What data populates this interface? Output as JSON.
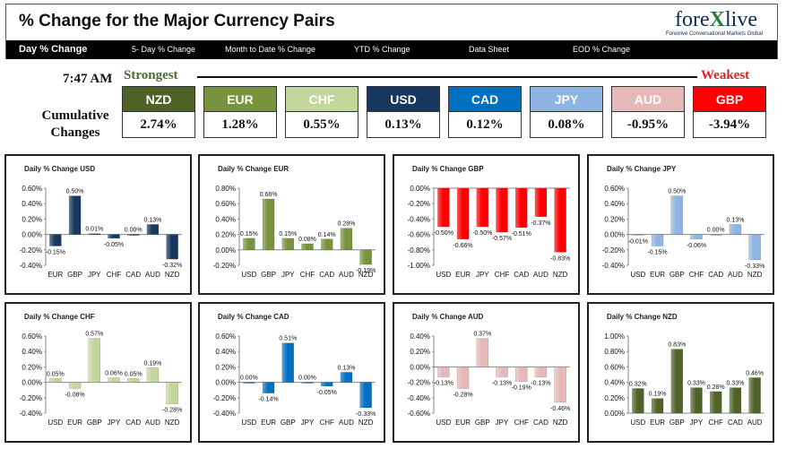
{
  "header": {
    "title": "% Change for the Major Currency Pairs",
    "logo_left": "fore",
    "logo_x": "X",
    "logo_right": "live",
    "tagline": "Forexlive Conversational Markets Global",
    "nav": [
      "Day % Change",
      "5- Day % Change",
      "Month to Date % Change",
      "YTD % Change",
      "Data Sheet",
      "EOD % Change"
    ]
  },
  "summary": {
    "time": "7:47 AM",
    "strongest_label": "Strongest",
    "weakest_label": "Weakest",
    "cumulative_label": "Cumulative Changes",
    "currencies": [
      {
        "code": "NZD",
        "value": "2.74%",
        "color": "#4f6228",
        "text_color": "#ffffff"
      },
      {
        "code": "EUR",
        "value": "1.28%",
        "color": "#77933c",
        "text_color": "#ffffff"
      },
      {
        "code": "CHF",
        "value": "0.55%",
        "color": "#c3d69b",
        "text_color": "#ffffff"
      },
      {
        "code": "USD",
        "value": "0.13%",
        "color": "#17375e",
        "text_color": "#ffffff"
      },
      {
        "code": "CAD",
        "value": "0.12%",
        "color": "#0070c0",
        "text_color": "#ffffff"
      },
      {
        "code": "JPY",
        "value": "0.08%",
        "color": "#8db4e2",
        "text_color": "#ffffff"
      },
      {
        "code": "AUD",
        "value": "-0.95%",
        "color": "#e6b8b7",
        "text_color": "#ffffff"
      },
      {
        "code": "GBP",
        "value": "-3.94%",
        "color": "#ff0000",
        "text_color": "#ffffff"
      }
    ]
  },
  "chart_data": [
    {
      "type": "bar",
      "title": "Daily % Change USD",
      "color": "#17375e",
      "categories": [
        "EUR",
        "GBP",
        "JPY",
        "CHF",
        "CAD",
        "AUD",
        "NZD"
      ],
      "values": [
        -0.15,
        0.5,
        0.01,
        -0.05,
        0.0,
        0.13,
        -0.32
      ],
      "labels": [
        "-0.15%",
        "0.50%",
        "0.01%",
        "-0.05%",
        "0.00%",
        "0.13%",
        "-0.32%"
      ],
      "ylim": [
        -0.4,
        0.6
      ],
      "yticks": [
        "0.60%",
        "0.40%",
        "0.20%",
        "0.00%",
        "-0.20%",
        "-0.40%"
      ]
    },
    {
      "type": "bar",
      "title": "Daily % Change EUR",
      "color": "#77933c",
      "categories": [
        "USD",
        "GBP",
        "JPY",
        "CHF",
        "CAD",
        "AUD",
        "NZD"
      ],
      "values": [
        0.15,
        0.66,
        0.15,
        0.08,
        0.14,
        0.28,
        -0.19
      ],
      "labels": [
        "0.15%",
        "0.66%",
        "0.15%",
        "0.08%",
        "0.14%",
        "0.28%",
        "-0.19%"
      ],
      "ylim": [
        -0.2,
        0.8
      ],
      "yticks": [
        "0.80%",
        "0.60%",
        "0.40%",
        "0.20%",
        "0.00%",
        "-0.20%"
      ]
    },
    {
      "type": "bar",
      "title": "Daily % Change GBP",
      "color": "#ff0000",
      "categories": [
        "USD",
        "EUR",
        "JPY",
        "CHF",
        "CAD",
        "AUD",
        "NZD"
      ],
      "values": [
        -0.5,
        -0.66,
        -0.5,
        -0.57,
        -0.51,
        -0.37,
        -0.83
      ],
      "labels": [
        "-0.50%",
        "-0.66%",
        "-0.50%",
        "-0.57%",
        "-0.51%",
        "-0.37%",
        "-0.83%"
      ],
      "ylim": [
        -1.0,
        0.0
      ],
      "yticks": [
        "0.00%",
        "-0.20%",
        "-0.40%",
        "-0.60%",
        "-0.80%",
        "-1.00%"
      ]
    },
    {
      "type": "bar",
      "title": "Daily % Change JPY",
      "color": "#8db4e2",
      "categories": [
        "USD",
        "EUR",
        "GBP",
        "CHF",
        "CAD",
        "AUD",
        "NZD"
      ],
      "values": [
        -0.01,
        -0.15,
        0.5,
        -0.06,
        0.0,
        0.13,
        -0.33
      ],
      "labels": [
        "-0.01%",
        "-0.15%",
        "0.50%",
        "-0.06%",
        "0.00%",
        "0.13%",
        "-0.33%"
      ],
      "ylim": [
        -0.4,
        0.6
      ],
      "yticks": [
        "0.60%",
        "0.40%",
        "0.20%",
        "0.00%",
        "-0.20%",
        "-0.40%"
      ]
    },
    {
      "type": "bar",
      "title": "Daily % Change CHF",
      "color": "#c3d69b",
      "categories": [
        "USD",
        "EUR",
        "GBP",
        "JPY",
        "CAD",
        "AUD",
        "NZD"
      ],
      "values": [
        0.05,
        -0.08,
        0.57,
        0.06,
        0.05,
        0.19,
        -0.28
      ],
      "labels": [
        "0.05%",
        "-0.08%",
        "0.57%",
        "0.06%",
        "0.05%",
        "0.19%",
        "-0.28%"
      ],
      "ylim": [
        -0.4,
        0.6
      ],
      "yticks": [
        "0.60%",
        "0.40%",
        "0.20%",
        "0.00%",
        "-0.20%",
        "-0.40%"
      ]
    },
    {
      "type": "bar",
      "title": "Daily % Change CAD",
      "color": "#0070c0",
      "categories": [
        "USD",
        "EUR",
        "GBP",
        "JPY",
        "CHF",
        "AUD",
        "NZD"
      ],
      "values": [
        0.0,
        -0.14,
        0.51,
        0.0,
        -0.05,
        0.13,
        -0.33
      ],
      "labels": [
        "0.00%",
        "-0.14%",
        "0.51%",
        "0.00%",
        "-0.05%",
        "0.13%",
        "-0.33%"
      ],
      "ylim": [
        -0.4,
        0.6
      ],
      "yticks": [
        "0.60%",
        "0.40%",
        "0.20%",
        "0.00%",
        "-0.20%",
        "-0.40%"
      ]
    },
    {
      "type": "bar",
      "title": "Daily % Change AUD",
      "color": "#e6b8b7",
      "categories": [
        "USD",
        "EUR",
        "GBP",
        "JPY",
        "CHF",
        "CAD",
        "NZD"
      ],
      "values": [
        -0.13,
        -0.28,
        0.37,
        -0.13,
        -0.19,
        -0.13,
        -0.46
      ],
      "labels": [
        "-0.13%",
        "-0.28%",
        "0.37%",
        "-0.13%",
        "-0.19%",
        "-0.13%",
        "-0.46%"
      ],
      "ylim": [
        -0.6,
        0.4
      ],
      "yticks": [
        "0.40%",
        "0.20%",
        "0.00%",
        "-0.20%",
        "-0.40%",
        "-0.60%"
      ]
    },
    {
      "type": "bar",
      "title": "Daily % Change NZD",
      "color": "#4f6228",
      "categories": [
        "USD",
        "EUR",
        "GBP",
        "JPY",
        "CHF",
        "CAD",
        "AUD"
      ],
      "values": [
        0.32,
        0.19,
        0.83,
        0.33,
        0.28,
        0.33,
        0.46
      ],
      "labels": [
        "0.32%",
        "0.19%",
        "0.83%",
        "0.33%",
        "0.28%",
        "0.33%",
        "0.46%"
      ],
      "ylim": [
        0.0,
        1.0
      ],
      "yticks": [
        "1.00%",
        "0.80%",
        "0.60%",
        "0.40%",
        "0.20%",
        "0.00%"
      ]
    }
  ]
}
